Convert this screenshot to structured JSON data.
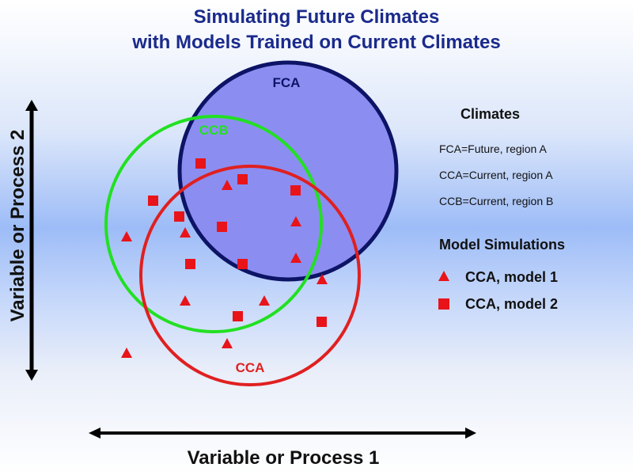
{
  "title": {
    "line1": "Simulating Future Climates",
    "line2": "with Models Trained on Current Climates"
  },
  "regions": [
    {
      "label": "FCA",
      "meaning": "Future, region A",
      "outline": "#0d1466",
      "fill": "#8b8ef0"
    },
    {
      "label": "CCB",
      "meaning": "Current, region B",
      "outline": "#22e022"
    },
    {
      "label": "CCA",
      "meaning": "Current, region A",
      "outline": "#e02020"
    }
  ],
  "legend": {
    "climates_heading": "Climates",
    "definitions": [
      "FCA=Future, region A",
      "CCA=Current, region A",
      "CCB=Current, region B"
    ],
    "models_heading": "Model Simulations",
    "models": [
      {
        "marker": "triangle",
        "label": "CCA, model 1"
      },
      {
        "marker": "square",
        "label": "CCA, model 2"
      }
    ]
  },
  "axes": {
    "x_label": "Variable or Process 1",
    "y_label": "Variable or Process 2"
  },
  "colors": {
    "title": "#1a2a8c",
    "marker": "#e8141a"
  }
}
